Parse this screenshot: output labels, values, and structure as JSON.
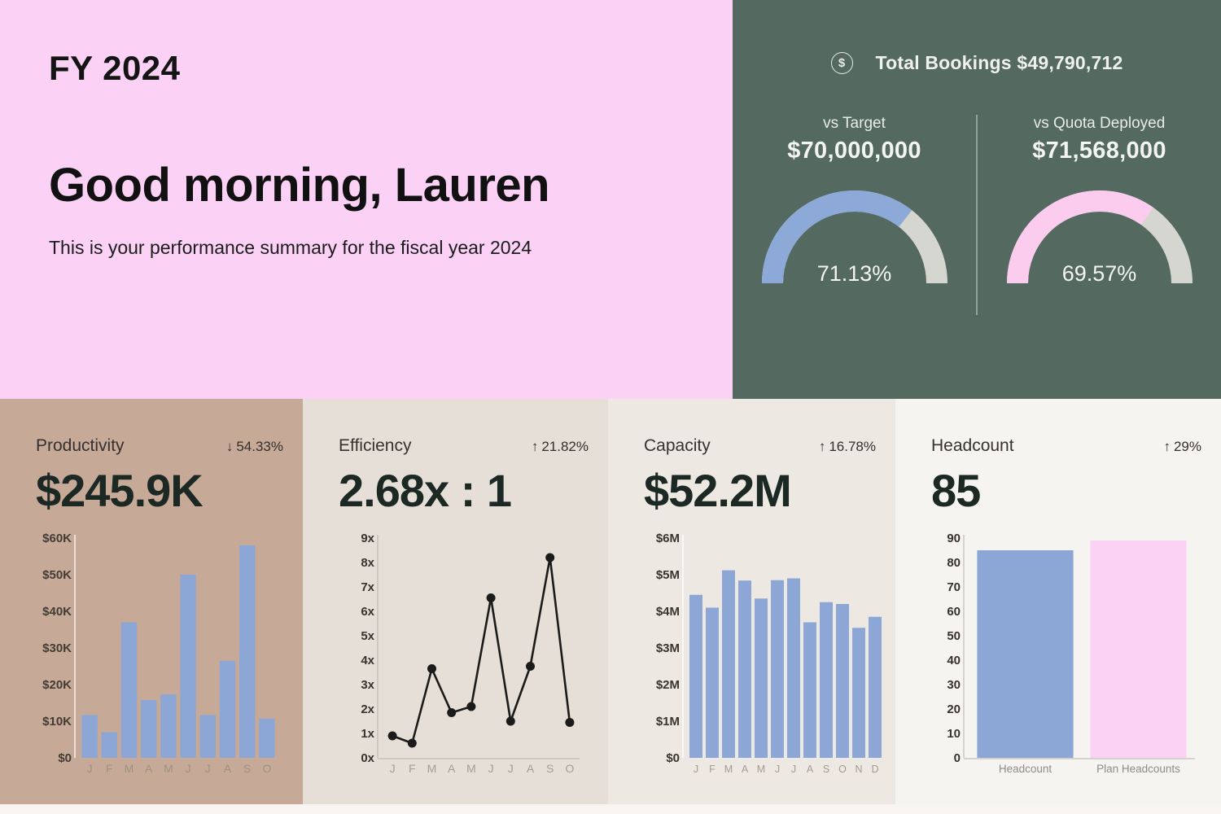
{
  "hero": {
    "fiscal_year": "FY 2024",
    "greeting": "Good morning, Lauren",
    "subtitle": "This is your performance summary for the fiscal year 2024",
    "bg": "#fbd1f6"
  },
  "bookings": {
    "bg": "#54695f",
    "icon_glyph": "$",
    "title": "Total Bookings $49,790,712",
    "divider_color": "#93a39b",
    "track_color": "#d6d6d1",
    "gauges": [
      {
        "label": "vs Target",
        "amount": "$70,000,000",
        "percent_label": "71.13%",
        "percent": 71.13,
        "color": "#8da9d8"
      },
      {
        "label": "vs Quota Deployed",
        "amount": "$71,568,000",
        "percent_label": "69.57%",
        "percent": 69.57,
        "color": "#fbccee"
      }
    ]
  },
  "cards": [
    {
      "title": "Productivity",
      "delta_arrow": "↓",
      "delta": "54.33%",
      "delta_direction": "down",
      "value": "$245.9K",
      "bg": "#c7a998"
    },
    {
      "title": "Efficiency",
      "delta_arrow": "↑",
      "delta": "21.82%",
      "delta_direction": "up",
      "value": "2.68x : 1",
      "bg": "#e6dfd7"
    },
    {
      "title": "Capacity",
      "delta_arrow": "↑",
      "delta": "16.78%",
      "delta_direction": "up",
      "value": "$52.2M",
      "bg": "#ede8e1"
    },
    {
      "title": "Headcount",
      "delta_arrow": "↑",
      "delta": "29%",
      "delta_direction": "up",
      "value": "85",
      "bg": "#f6f4f1"
    }
  ],
  "chart_data": [
    {
      "type": "bar",
      "title": "Productivity monthly",
      "categories": [
        "J",
        "F",
        "M",
        "A",
        "M",
        "J",
        "J",
        "A",
        "S",
        "O"
      ],
      "values": [
        11700,
        7000,
        37000,
        15800,
        17300,
        50000,
        11700,
        26500,
        58000,
        10700
      ],
      "ylim": [
        0,
        60000
      ],
      "yticks": [
        "$60K",
        "$50K",
        "$40K",
        "$30K",
        "$20K",
        "$10K",
        "$0"
      ],
      "bar_color": "#8ca7d6",
      "tick_color": "#423c34",
      "cat_color": "#9d9186",
      "axis_color": "rgba(255,255,255,0.65)",
      "baseline": false
    },
    {
      "type": "line",
      "title": "Efficiency monthly",
      "categories": [
        "J",
        "F",
        "M",
        "A",
        "M",
        "J",
        "J",
        "A",
        "S",
        "O"
      ],
      "values": [
        0.9,
        0.6,
        3.65,
        1.85,
        2.1,
        6.55,
        1.5,
        3.75,
        8.2,
        1.45
      ],
      "ylim": [
        0,
        9
      ],
      "yticks": [
        "9x",
        "8x",
        "7x",
        "6x",
        "5x",
        "4x",
        "3x",
        "2x",
        "1x",
        "0x"
      ],
      "line_color": "#1b1b1b",
      "tick_color": "#37332e",
      "cat_color": "#a59c92",
      "axis_color": "#cfc8bf",
      "baseline": true
    },
    {
      "type": "bar",
      "title": "Capacity monthly",
      "categories": [
        "J",
        "F",
        "M",
        "A",
        "M",
        "J",
        "J",
        "A",
        "S",
        "O",
        "N",
        "D"
      ],
      "values": [
        4450000,
        4100000,
        5120000,
        4840000,
        4350000,
        4850000,
        4900000,
        3700000,
        4250000,
        4200000,
        3550000,
        3850000
      ],
      "ylim": [
        0,
        6000000
      ],
      "yticks": [
        "$6M",
        "$5M",
        "$4M",
        "$3M",
        "$2M",
        "$1M",
        "$0"
      ],
      "bar_color": "#8ca7d6",
      "tick_color": "#39342e",
      "cat_color": "#a39b92",
      "axis_color": "rgba(255,255,255,0.7)",
      "baseline": false
    },
    {
      "type": "bar",
      "title": "Headcount vs plan",
      "categories": [
        "Headcount",
        "Plan Headcounts"
      ],
      "values": [
        85,
        89
      ],
      "ylim": [
        0,
        90
      ],
      "yticks": [
        "90",
        "80",
        "70",
        "60",
        "50",
        "40",
        "30",
        "20",
        "10",
        "0"
      ],
      "bar_colors": [
        "#8ca7d6",
        "#fbd2f4"
      ],
      "tick_color": "#34312d",
      "cat_color": "#8f8b86",
      "axis_color": "#d5d2ce",
      "baseline": true
    }
  ]
}
